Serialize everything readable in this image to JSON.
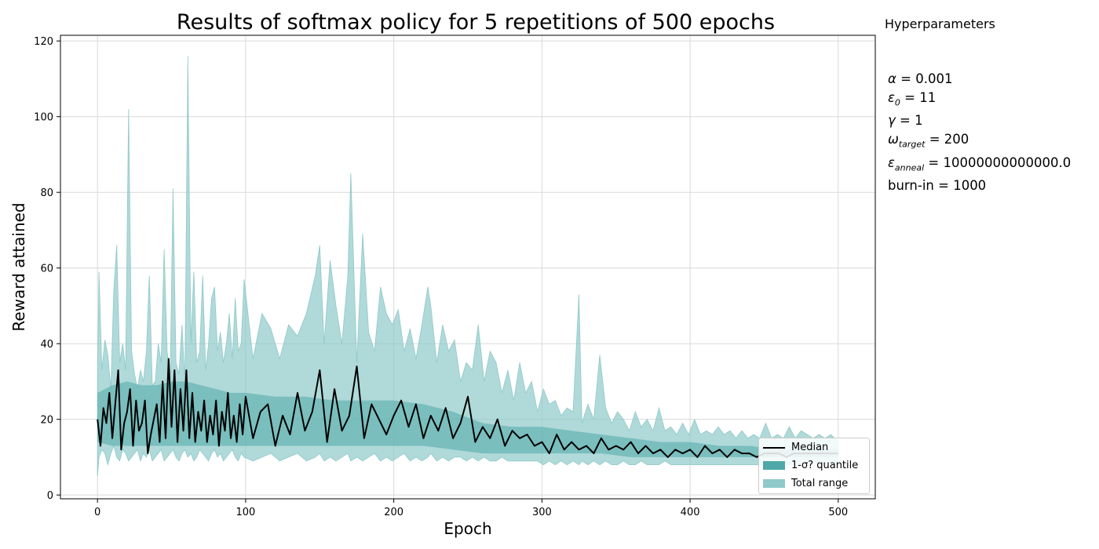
{
  "colors": {
    "median": "#000000",
    "quantile_fill": "#4fa8a8",
    "range_fill": "#8fc9c9",
    "grid": "#d9d9d9"
  },
  "hyperparameters": {
    "heading": "Hyperparameters",
    "alpha": {
      "symbol": "α",
      "sub": "",
      "value": "= 0.001"
    },
    "epsilon0": {
      "symbol": "ε",
      "sub": "0",
      "value": "= 11"
    },
    "gamma": {
      "symbol": "γ",
      "sub": "",
      "value": "= 1"
    },
    "omega": {
      "symbol": "ω",
      "sub": "target",
      "value": "= 200"
    },
    "epsanneal": {
      "symbol": "ε",
      "sub": "anneal",
      "value": "= 10000000000000.0"
    },
    "burnin": {
      "text": "burn-in = 1000"
    }
  },
  "legend": {
    "median": "Median",
    "quantile": "1-σ? quantile",
    "range": "Total range"
  },
  "chart_data": {
    "type": "line",
    "title": "Results of softmax policy for 5 repetitions of 500 epochs",
    "xlabel": "Epoch",
    "ylabel": "Reward attained",
    "xlim": [
      -25,
      525
    ],
    "ylim": [
      -1,
      121.5
    ],
    "xticks": [
      0,
      100,
      200,
      300,
      400,
      500
    ],
    "yticks": [
      0,
      20,
      40,
      60,
      80,
      100,
      120
    ],
    "grid": true,
    "legend_position": "lower right",
    "series": [
      {
        "name": "Median",
        "x": [
          0,
          2,
          4,
          6,
          8,
          10,
          12,
          14,
          16,
          18,
          20,
          22,
          24,
          26,
          28,
          30,
          32,
          34,
          36,
          38,
          40,
          42,
          44,
          46,
          48,
          50,
          52,
          54,
          56,
          58,
          60,
          62,
          64,
          66,
          68,
          70,
          72,
          74,
          76,
          78,
          80,
          82,
          84,
          86,
          88,
          90,
          92,
          94,
          96,
          98,
          100,
          105,
          110,
          115,
          120,
          125,
          130,
          135,
          140,
          145,
          150,
          155,
          160,
          165,
          170,
          175,
          180,
          185,
          190,
          195,
          200,
          205,
          210,
          215,
          220,
          225,
          230,
          235,
          240,
          245,
          250,
          255,
          260,
          265,
          270,
          275,
          280,
          285,
          290,
          295,
          300,
          305,
          310,
          315,
          320,
          325,
          330,
          335,
          340,
          345,
          350,
          355,
          360,
          365,
          370,
          375,
          380,
          385,
          390,
          395,
          400,
          405,
          410,
          415,
          420,
          425,
          430,
          435,
          440,
          445,
          450,
          455,
          460,
          465,
          470,
          475,
          480,
          485,
          490,
          495,
          500
        ],
        "values": [
          20,
          13,
          23,
          19,
          27,
          15,
          24,
          33,
          12,
          19,
          22,
          28,
          13,
          25,
          17,
          19,
          25,
          11,
          16,
          20,
          24,
          14,
          30,
          15,
          36,
          18,
          33,
          14,
          28,
          17,
          33,
          15,
          27,
          14,
          22,
          17,
          25,
          14,
          21,
          16,
          25,
          13,
          22,
          17,
          27,
          15,
          21,
          14,
          24,
          16,
          26,
          15,
          22,
          24,
          13,
          21,
          16,
          27,
          17,
          22,
          33,
          14,
          28,
          17,
          21,
          34,
          15,
          24,
          20,
          16,
          21,
          25,
          18,
          24,
          15,
          21,
          17,
          23,
          15,
          19,
          26,
          14,
          18,
          15,
          20,
          13,
          17,
          15,
          16,
          13,
          14,
          11,
          16,
          12,
          14,
          12,
          13,
          11,
          15,
          12,
          13,
          12,
          14,
          11,
          13,
          11,
          12,
          10,
          12,
          11,
          12,
          10,
          13,
          11,
          12,
          10,
          12,
          11,
          11,
          10,
          11,
          11,
          11,
          10,
          11,
          11,
          11,
          11,
          11,
          11,
          11
        ]
      },
      {
        "name": "1-σ? quantile",
        "x": [
          0,
          10,
          20,
          30,
          40,
          50,
          60,
          70,
          80,
          90,
          100,
          120,
          140,
          160,
          180,
          200,
          220,
          240,
          260,
          280,
          300,
          320,
          340,
          360,
          380,
          400,
          420,
          440,
          460,
          480,
          500
        ],
        "lower": [
          14,
          13,
          13,
          13,
          13,
          13,
          13,
          13,
          13,
          13,
          13,
          13,
          13,
          13,
          13,
          13,
          13,
          12,
          11,
          11,
          11,
          11,
          11,
          10,
          10,
          10,
          10,
          10,
          10,
          10,
          10
        ],
        "upper": [
          27,
          29,
          30,
          29,
          29,
          30,
          30,
          29,
          28,
          27,
          27,
          26,
          26,
          25,
          25,
          25,
          24,
          22,
          19,
          18,
          18,
          17,
          16,
          15,
          14,
          14,
          13,
          13,
          12,
          12,
          12
        ]
      },
      {
        "name": "Total range",
        "x": [
          0,
          1,
          3,
          5,
          7,
          9,
          11,
          13,
          15,
          17,
          19,
          21,
          23,
          25,
          27,
          29,
          31,
          33,
          35,
          37,
          39,
          41,
          43,
          45,
          47,
          49,
          51,
          53,
          55,
          57,
          59,
          61,
          63,
          65,
          67,
          69,
          71,
          73,
          75,
          77,
          79,
          81,
          83,
          85,
          87,
          89,
          91,
          93,
          95,
          97,
          99,
          105,
          111,
          117,
          123,
          129,
          135,
          141,
          147,
          150,
          153,
          157,
          161,
          165,
          169,
          171,
          175,
          179,
          183,
          187,
          191,
          195,
          199,
          203,
          207,
          211,
          215,
          219,
          223,
          225,
          229,
          233,
          237,
          241,
          245,
          249,
          253,
          257,
          261,
          265,
          269,
          273,
          277,
          281,
          285,
          289,
          293,
          297,
          301,
          305,
          309,
          313,
          317,
          321,
          325,
          327,
          331,
          335,
          339,
          343,
          347,
          351,
          355,
          359,
          363,
          367,
          371,
          375,
          379,
          383,
          387,
          391,
          395,
          399,
          403,
          407,
          411,
          415,
          419,
          423,
          427,
          431,
          435,
          439,
          443,
          447,
          451,
          455,
          459,
          463,
          467,
          471,
          475,
          479,
          483,
          487,
          491,
          495,
          500
        ],
        "lower": [
          5,
          10,
          12,
          11,
          8,
          11,
          13,
          10,
          9,
          12,
          11,
          9,
          10,
          11,
          12,
          9,
          11,
          10,
          12,
          9,
          10,
          11,
          12,
          9,
          10,
          11,
          12,
          10,
          9,
          11,
          12,
          10,
          11,
          9,
          10,
          12,
          11,
          10,
          9,
          11,
          12,
          10,
          11,
          9,
          10,
          11,
          12,
          10,
          9,
          11,
          10,
          9,
          10,
          11,
          9,
          10,
          11,
          9,
          10,
          11,
          9,
          10,
          9,
          10,
          11,
          9,
          10,
          9,
          10,
          11,
          9,
          10,
          9,
          10,
          11,
          9,
          10,
          9,
          10,
          11,
          9,
          10,
          9,
          10,
          10,
          9,
          10,
          9,
          10,
          9,
          9,
          10,
          9,
          9,
          9,
          9,
          9,
          9,
          8,
          9,
          8,
          9,
          8,
          9,
          8,
          9,
          8,
          9,
          8,
          9,
          8,
          8,
          9,
          8,
          8,
          9,
          8,
          8,
          8,
          9,
          8,
          8,
          8,
          8,
          8,
          8,
          8,
          8,
          8,
          8,
          8,
          8,
          8,
          8,
          8,
          8,
          8,
          8,
          8,
          8,
          8,
          8,
          8,
          9,
          8,
          9,
          8,
          9,
          8
        ],
        "upper": [
          30,
          59,
          33,
          41,
          37,
          28,
          54,
          66,
          35,
          40,
          33,
          102,
          38,
          32,
          28,
          33,
          30,
          38,
          58,
          29,
          30,
          40,
          35,
          65,
          38,
          30,
          81,
          35,
          32,
          45,
          30,
          116,
          40,
          59,
          35,
          38,
          58,
          33,
          40,
          52,
          55,
          38,
          43,
          35,
          40,
          48,
          36,
          52,
          38,
          40,
          57,
          36,
          48,
          44,
          36,
          45,
          42,
          48,
          58,
          66,
          40,
          62,
          50,
          40,
          58,
          85,
          35,
          69,
          43,
          38,
          55,
          48,
          45,
          49,
          38,
          44,
          36,
          45,
          55,
          50,
          35,
          45,
          38,
          41,
          30,
          35,
          33,
          45,
          30,
          38,
          35,
          27,
          33,
          25,
          35,
          27,
          30,
          22,
          28,
          24,
          25,
          21,
          23,
          22,
          53,
          19,
          24,
          20,
          37,
          23,
          19,
          22,
          20,
          17,
          22,
          18,
          20,
          17,
          23,
          17,
          18,
          16,
          19,
          16,
          20,
          16,
          17,
          16,
          18,
          16,
          17,
          15,
          17,
          15,
          16,
          15,
          19,
          15,
          16,
          15,
          18,
          15,
          17,
          16,
          15,
          16,
          15,
          16,
          14
        ]
      }
    ]
  }
}
